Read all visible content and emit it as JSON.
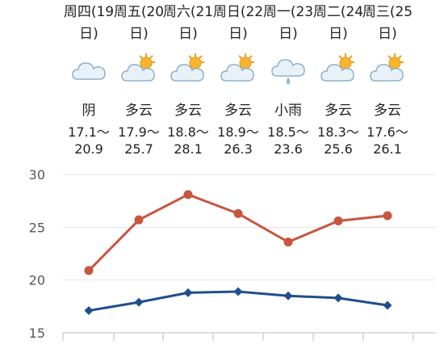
{
  "days": [
    {
      "head": "周四(19日)",
      "cond": "阴",
      "icon": "overcast-cloud-icon",
      "low": "17.1～",
      "high": "20.9"
    },
    {
      "head": "周五(20日)",
      "cond": "多云",
      "icon": "partly-cloudy-icon",
      "low": "17.9～",
      "high": "25.7"
    },
    {
      "head": "周六(21日)",
      "cond": "多云",
      "icon": "partly-cloudy-icon",
      "low": "18.8～",
      "high": "28.1"
    },
    {
      "head": "周日(22日)",
      "cond": "多云",
      "icon": "partly-cloudy-icon",
      "low": "18.9～",
      "high": "26.3"
    },
    {
      "head": "周一(23日)",
      "cond": "小雨",
      "icon": "light-rain-icon",
      "low": "18.5～",
      "high": "23.6"
    },
    {
      "head": "周二(24日)",
      "cond": "多云",
      "icon": "partly-cloudy-icon",
      "low": "18.3～",
      "high": "25.6"
    },
    {
      "head": "周三(25日)",
      "cond": "多云",
      "icon": "partly-cloudy-icon",
      "low": "17.6～",
      "high": "26.1"
    }
  ],
  "chart_data": {
    "type": "line",
    "categories": [
      "周四(19日)",
      "周五(20日)",
      "周六(21日)",
      "周日(22日)",
      "周一(23日)",
      "周二(24日)",
      "周三(25日)"
    ],
    "ylim": [
      15,
      30
    ],
    "yticks": [
      15,
      20,
      25,
      30
    ],
    "ytick_labels": [
      "15",
      "20",
      "25",
      "30"
    ],
    "grid": true,
    "series": [
      {
        "values": [
          20.9,
          25.7,
          28.1,
          26.3,
          23.6,
          25.6,
          26.1
        ],
        "color": "#c8553d",
        "marker": "circle"
      },
      {
        "values": [
          17.1,
          17.9,
          18.8,
          18.9,
          18.5,
          18.3,
          17.6
        ],
        "color": "#1f4e8c",
        "marker": "diamond"
      }
    ]
  }
}
